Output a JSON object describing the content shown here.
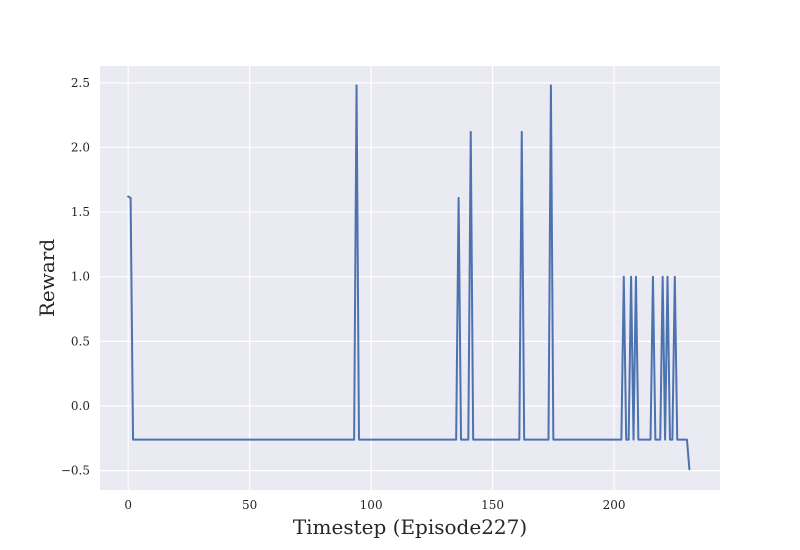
{
  "chart_data": {
    "type": "line",
    "title": "",
    "xlabel": "Timestep (Episode227)",
    "ylabel": "Reward",
    "xlim": [
      -11.6,
      243.6
    ],
    "ylim": [
      -0.65,
      2.63
    ],
    "x_ticks": [
      0,
      50,
      100,
      150,
      200
    ],
    "y_ticks": [
      -0.5,
      0.0,
      0.5,
      1.0,
      1.5,
      2.0,
      2.5
    ],
    "x_tick_labels": [
      "0",
      "50",
      "100",
      "150",
      "200"
    ],
    "y_tick_labels": [
      "−0.5",
      "0.0",
      "0.5",
      "1.0",
      "1.5",
      "2.0",
      "2.5"
    ],
    "grid": true,
    "series": [
      {
        "color": "#4c72b0",
        "points": [
          [
            0,
            1.62
          ],
          [
            1,
            1.61
          ],
          [
            2,
            -0.26
          ],
          [
            93,
            -0.26
          ],
          [
            94,
            2.48
          ],
          [
            95,
            -0.26
          ],
          [
            135,
            -0.26
          ],
          [
            136,
            1.61
          ],
          [
            137,
            -0.26
          ],
          [
            140,
            -0.26
          ],
          [
            141,
            2.12
          ],
          [
            142,
            -0.26
          ],
          [
            161,
            -0.26
          ],
          [
            162,
            2.12
          ],
          [
            163,
            -0.26
          ],
          [
            173,
            -0.26
          ],
          [
            174,
            2.48
          ],
          [
            175,
            -0.26
          ],
          [
            203,
            -0.26
          ],
          [
            204,
            1.0
          ],
          [
            205,
            -0.26
          ],
          [
            206,
            -0.26
          ],
          [
            207,
            1.0
          ],
          [
            208,
            -0.26
          ],
          [
            209,
            1.0
          ],
          [
            210,
            -0.26
          ],
          [
            215,
            -0.26
          ],
          [
            216,
            1.0
          ],
          [
            217,
            -0.26
          ],
          [
            219,
            -0.26
          ],
          [
            220,
            1.0
          ],
          [
            221,
            -0.26
          ],
          [
            222,
            1.0
          ],
          [
            223,
            -0.26
          ],
          [
            224,
            -0.26
          ],
          [
            225,
            1.0
          ],
          [
            226,
            -0.26
          ],
          [
            230,
            -0.26
          ],
          [
            231,
            -0.49
          ]
        ]
      }
    ]
  }
}
